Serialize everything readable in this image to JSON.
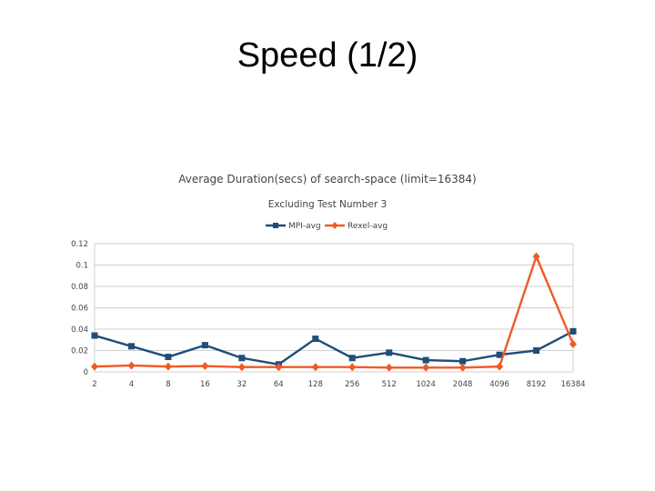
{
  "slide": {
    "title": "Speed (1/2)"
  },
  "chart_data": {
    "type": "line",
    "title": "Average Duration(secs) of search-space (limit=16384)",
    "subtitle": "Excluding Test Number 3",
    "xlabel": "",
    "ylabel": "",
    "categories": [
      "2",
      "4",
      "8",
      "16",
      "32",
      "64",
      "128",
      "256",
      "512",
      "1024",
      "2048",
      "4096",
      "8192",
      "16384"
    ],
    "ylim": [
      0,
      0.12
    ],
    "yticks": [
      0,
      0.02,
      0.04,
      0.06,
      0.08,
      0.1,
      0.12
    ],
    "ytick_labels": [
      "0",
      "0.02",
      "0.04",
      "0.06",
      "0.08",
      "0.1",
      "0.12"
    ],
    "grid": true,
    "legend_position": "top",
    "series": [
      {
        "name": "MPI-avg",
        "color": "#1f4e79",
        "marker": "square",
        "values": [
          0.034,
          0.024,
          0.014,
          0.025,
          0.013,
          0.007,
          0.031,
          0.013,
          0.018,
          0.011,
          0.01,
          0.016,
          0.02,
          0.038
        ]
      },
      {
        "name": "Rexel-avg",
        "color": "#f15a24",
        "marker": "diamond",
        "values": [
          0.005,
          0.006,
          0.005,
          0.0055,
          0.0045,
          0.0045,
          0.0045,
          0.0045,
          0.004,
          0.004,
          0.004,
          0.005,
          0.108,
          0.026
        ]
      }
    ]
  }
}
